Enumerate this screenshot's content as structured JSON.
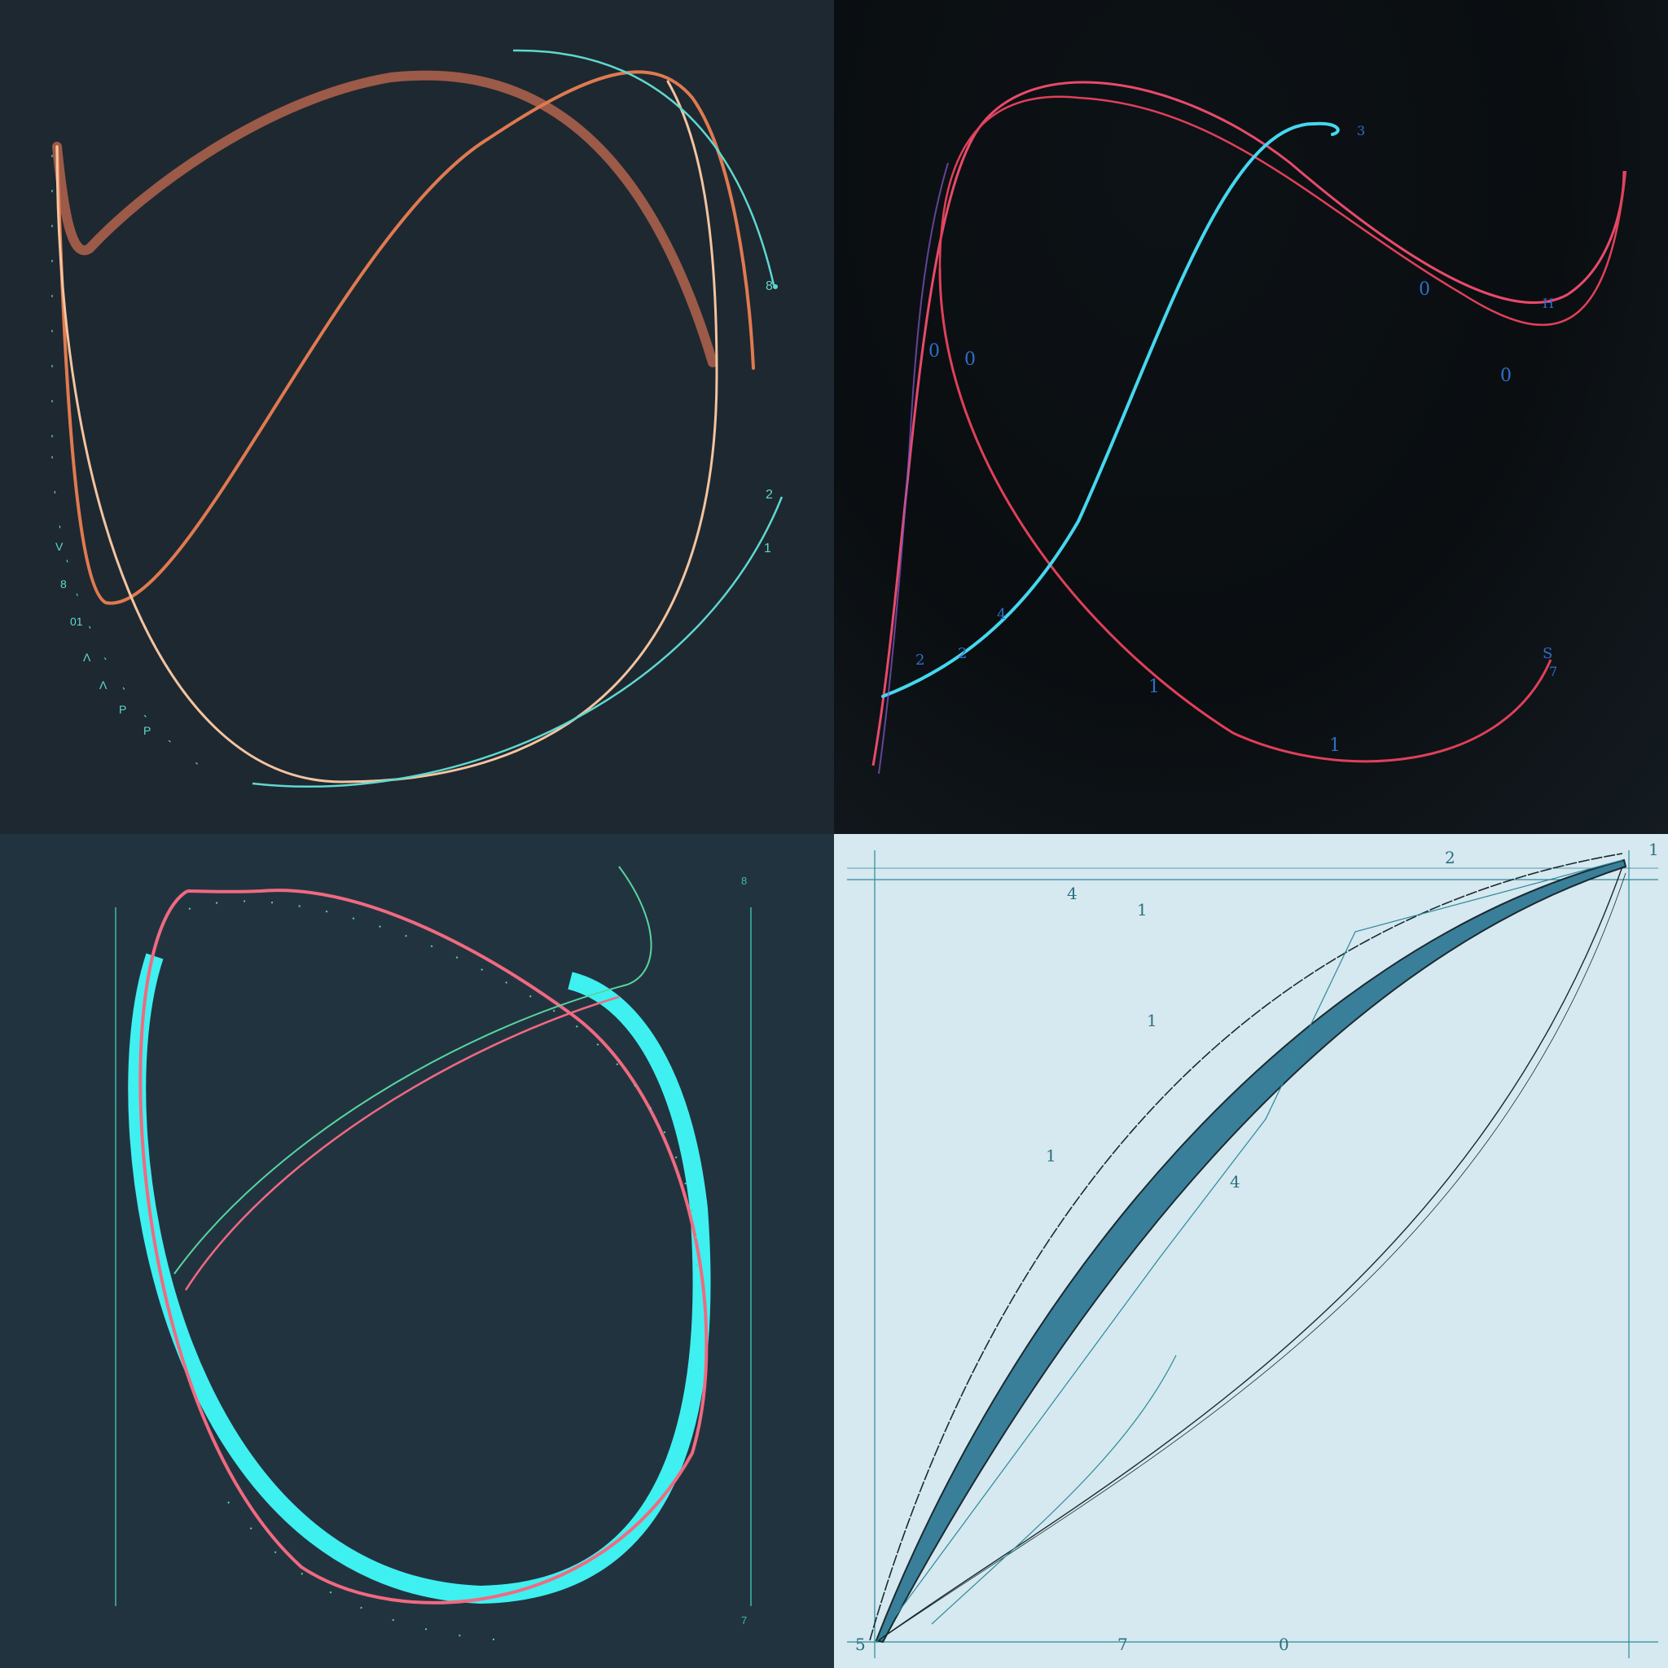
{
  "colors": {
    "panel1_bg": "#1e2830",
    "panel2_bg": "#0b0f12",
    "panel3_bg": "#223340",
    "panel4_bg": "#d6e8f0",
    "orange": "#e07a50",
    "peach": "#f3c4a0",
    "teal": "#5fd8d0",
    "cyan": "#45d8f0",
    "red": "#e0405a",
    "pink": "#f06a80",
    "bright_cyan": "#3ff0f0",
    "mint": "#57d6a0",
    "steel": "#3a7f9a",
    "dark_line": "#1a2a30"
  },
  "panel1": {
    "right_labels": [
      "8",
      "2",
      "1"
    ],
    "axis_ticks": [
      "V",
      "8",
      "01",
      "Λ",
      "Λ",
      "P",
      "P"
    ]
  },
  "panel2": {
    "labels": [
      "0",
      "0",
      "0",
      "0",
      "H",
      "2",
      "4",
      "2",
      "1",
      "1",
      "S",
      "7",
      "3"
    ]
  },
  "panel3": {
    "side_labels": [
      "8",
      "7"
    ]
  },
  "panel4": {
    "labels": [
      "4",
      "1",
      "2",
      "1",
      "1",
      "1",
      "4",
      "5",
      "7",
      "0"
    ]
  }
}
